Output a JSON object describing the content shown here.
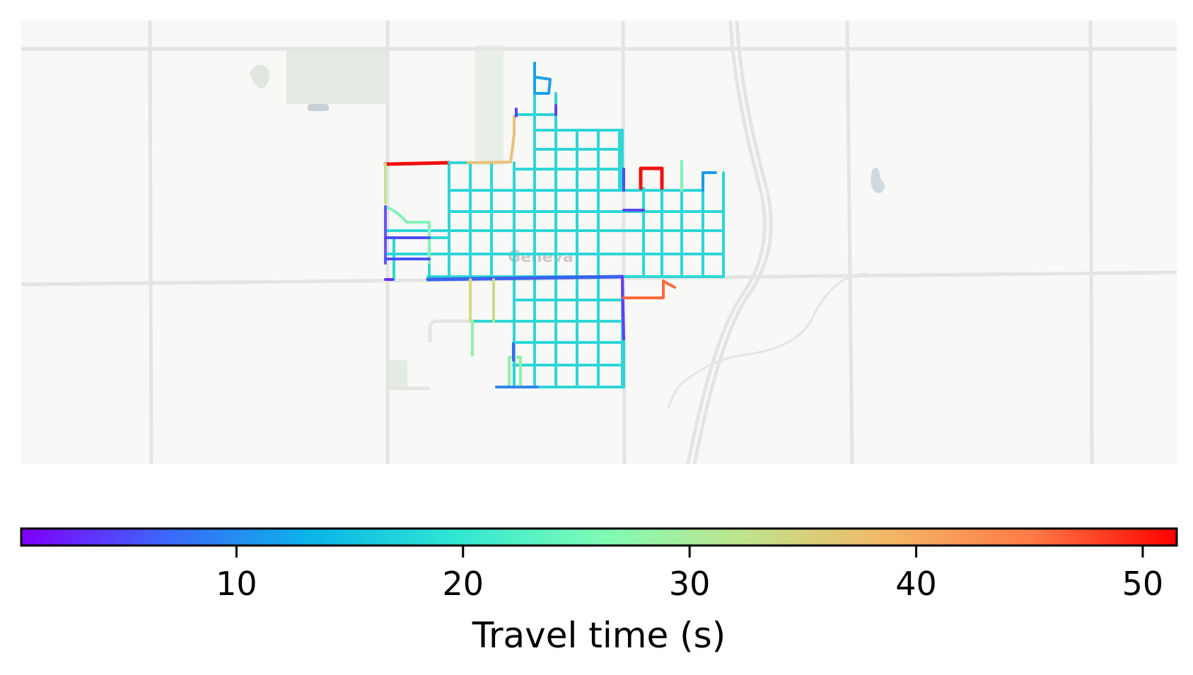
{
  "map": {
    "place_label": "Geneva",
    "edge_color_metric": "travel time",
    "basemap_style": "light-gray"
  },
  "colorbar": {
    "label": "Travel time (s)",
    "colormap": "rainbow",
    "range": [
      0.5,
      51.5
    ],
    "ticks": [
      10,
      20,
      30,
      40,
      50
    ],
    "tick_labels": [
      "10",
      "20",
      "30",
      "40",
      "50"
    ],
    "gradient_colors": [
      "#7f00ff",
      "#3c67f9",
      "#0bb4e8",
      "#30e6d3",
      "#7dfbb5",
      "#bfe38c",
      "#f3b766",
      "#ff7a44",
      "#ff0000"
    ]
  },
  "colors": {
    "dominant_edge": "#2ed6d6",
    "road": "#e6e6e6",
    "park": "#e4ede4",
    "water": "#c5d3db",
    "background": "#f7f7f5"
  }
}
